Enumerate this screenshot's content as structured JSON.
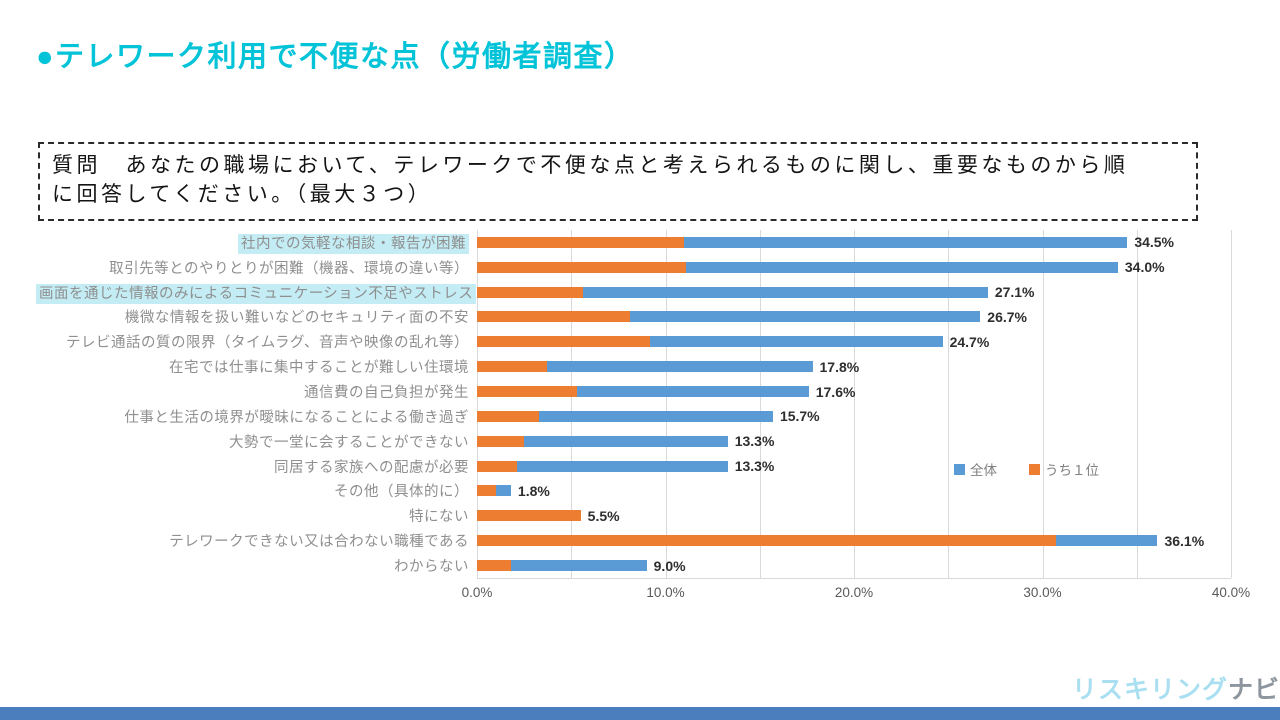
{
  "page": {
    "title": "●テレワーク利用で不便な点（労働者調査）",
    "question_line1": "質問　あなたの職場において、テレワークで不便な点と考えられるものに関し、重要なものから順",
    "question_line2": "に回答してください。（最大３つ）",
    "logo": {
      "part1": "リスキリング",
      "part2": "ナビ"
    }
  },
  "colors": {
    "accent_cyan": "#02c3d7",
    "bar_blue": "#5b9bd5",
    "bar_orange": "#ed7d31",
    "highlight_bg": "#c3ecf4",
    "category_text": "#8f8f8f",
    "footer_bar": "#4a7ebd",
    "logo_cyan": "#a9dff0",
    "logo_gray": "#8d969e"
  },
  "chart_data": {
    "type": "bar",
    "orientation": "horizontal",
    "stacked": true,
    "categories": [
      "社内での気軽な相談・報告が困難",
      "取引先等とのやりとりが困難（機器、環境の違い等）",
      "画面を通じた情報のみによるコミュニケーション不足やストレス",
      "機微な情報を扱い難いなどのセキュリティ面の不安",
      "テレビ通話の質の限界（タイムラグ、音声や映像の乱れ等）",
      "在宅では仕事に集中することが難しい住環境",
      "通信費の自己負担が発生",
      "仕事と生活の境界が曖昧になることによる働き過ぎ",
      "大勢で一堂に会することができない",
      "同居する家族への配慮が必要",
      "その他（具体的に）",
      "特にない",
      "テレワークできない又は合わない職種である",
      "わからない"
    ],
    "highlighted_rows": [
      0,
      2
    ],
    "series": [
      {
        "name": "全体",
        "color": "#5b9bd5",
        "values": [
          34.5,
          34.0,
          27.1,
          26.7,
          24.7,
          17.8,
          17.6,
          15.7,
          13.3,
          13.3,
          1.8,
          5.5,
          36.1,
          9.0
        ]
      },
      {
        "name": "うち１位",
        "color": "#ed7d31",
        "values": [
          11.0,
          11.1,
          5.6,
          8.1,
          9.2,
          3.7,
          5.3,
          3.3,
          2.5,
          2.1,
          1.0,
          5.5,
          30.7,
          1.8
        ]
      }
    ],
    "data_labels": [
      "34.5%",
      "34.0%",
      "27.1%",
      "26.7%",
      "24.7%",
      "17.8%",
      "17.6%",
      "15.7%",
      "13.3%",
      "13.3%",
      "1.8%",
      "5.5%",
      "36.1%",
      "9.0%"
    ],
    "xlim": [
      0,
      40
    ],
    "x_ticks": [
      "0.0%",
      "10.0%",
      "20.0%",
      "30.0%",
      "40.0%"
    ],
    "gridline_step_pct": 5,
    "grid": true,
    "legend_position": "middle-right"
  }
}
